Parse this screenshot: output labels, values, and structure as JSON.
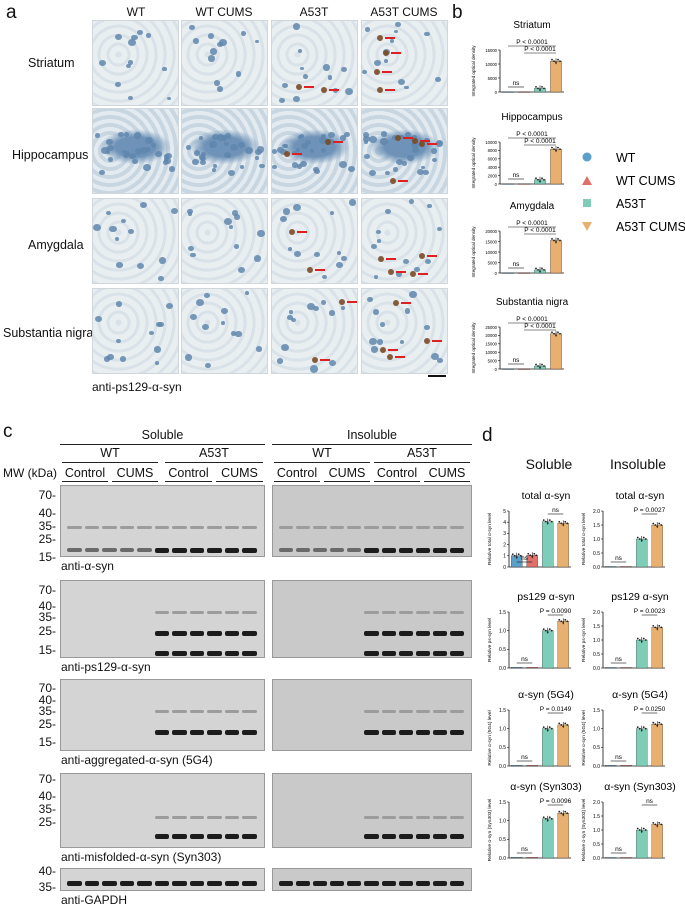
{
  "panels": {
    "a": "a",
    "b": "b",
    "c": "c",
    "d": "d"
  },
  "panel_a": {
    "columns": [
      "WT",
      "WT CUMS",
      "A53T",
      "A53T CUMS"
    ],
    "rows": [
      "Striatum",
      "Hippocampus",
      "Amygdala",
      "Substantia nigra"
    ],
    "caption": "anti-ps129-α-syn"
  },
  "panel_b": {
    "ylabel": "Integrated optical density",
    "legend": [
      {
        "label": "WT",
        "color": "#5aa0c8",
        "marker": "circle"
      },
      {
        "label": "WT CUMS",
        "color": "#e07068",
        "marker": "triangle"
      },
      {
        "label": "A53T",
        "color": "#7ecdb8",
        "marker": "square"
      },
      {
        "label": "A53T CUMS",
        "color": "#e8b070",
        "marker": "inverted-triangle"
      }
    ]
  },
  "panel_c": {
    "groups": {
      "soluble": "Soluble",
      "insoluble": "Insoluble",
      "wt": "WT",
      "a53t": "A53T",
      "control": "Control",
      "cums": "CUMS"
    },
    "mw_label": "MW (kDa)",
    "blots": [
      {
        "label": "anti-α-syn",
        "markers": [
          "70-",
          "40-",
          "35-",
          "25-",
          "15-"
        ]
      },
      {
        "label": "anti-ps129-α-syn",
        "markers": [
          "70-",
          "40-",
          "35-",
          "25-",
          "15-"
        ]
      },
      {
        "label": "anti-aggregated-α-syn (5G4)",
        "markers": [
          "70-",
          "40-",
          "35-",
          "25-",
          "15-"
        ]
      },
      {
        "label": "anti-misfolded-α-syn (Syn303)",
        "markers": [
          "70-",
          "40-",
          "35-",
          "25-"
        ]
      },
      {
        "label": "anti-GAPDH",
        "markers": [
          "40-",
          "35-"
        ]
      }
    ]
  },
  "panel_d": {
    "col_titles": [
      "Soluble",
      "Insoluble"
    ],
    "ns": "ns"
  },
  "chart_data": [
    {
      "type": "bar",
      "title": "Striatum",
      "categories": [
        "WT",
        "WT CUMS",
        "A53T",
        "A53T CUMS"
      ],
      "values": [
        30,
        30,
        1300,
        11000
      ],
      "ylim": [
        0,
        15000
      ],
      "yticks": [
        "0",
        "5000",
        "10000",
        "15000"
      ],
      "ylabel": "Integrated optical density",
      "annotations": [
        "ns",
        "P < 0.0001",
        "P < 0.0001"
      ]
    },
    {
      "type": "bar",
      "title": "Hippocampus",
      "categories": [
        "WT",
        "WT CUMS",
        "A53T",
        "A53T CUMS"
      ],
      "values": [
        30,
        30,
        1000,
        8300
      ],
      "ylim": [
        0,
        10000
      ],
      "yticks": [
        "0",
        "2000",
        "4000",
        "6000",
        "8000",
        "10000"
      ],
      "ylabel": "Integrated optical density",
      "annotations": [
        "ns",
        "P < 0.0001",
        "P < 0.0001"
      ]
    },
    {
      "type": "bar",
      "title": "Amygdala",
      "categories": [
        "WT",
        "WT CUMS",
        "A53T",
        "A53T CUMS"
      ],
      "values": [
        30,
        30,
        1500,
        15500
      ],
      "ylim": [
        0,
        20000
      ],
      "yticks": [
        "0",
        "5000",
        "10000",
        "15000",
        "20000"
      ],
      "ylabel": "Integrated optical density",
      "annotations": [
        "ns",
        "P < 0.0001",
        "P < 0.0001"
      ]
    },
    {
      "type": "bar",
      "title": "Substantia nigra",
      "categories": [
        "WT",
        "WT CUMS",
        "A53T",
        "A53T CUMS"
      ],
      "values": [
        30,
        30,
        1800,
        21000
      ],
      "ylim": [
        0,
        25000
      ],
      "yticks": [
        "0",
        "5000",
        "10000",
        "15000",
        "20000",
        "25000"
      ],
      "ylabel": "Integrated optical density",
      "annotations": [
        "ns",
        "P < 0.0001",
        "P < 0.0001"
      ]
    },
    {
      "type": "bar",
      "title": "total α-syn",
      "group": "Soluble",
      "categories": [
        "WT",
        "WT CUMS",
        "A53T",
        "A53T CUMS"
      ],
      "values": [
        1.0,
        1.05,
        4.05,
        3.9
      ],
      "ylim": [
        0,
        5
      ],
      "yticks": [
        "0",
        "1",
        "2",
        "3",
        "4",
        "5"
      ],
      "ylabel": "Relative total α-syn level",
      "annotations": [
        "ns",
        "ns"
      ]
    },
    {
      "type": "bar",
      "title": "total α-syn",
      "group": "Insoluble",
      "categories": [
        "WT",
        "WT CUMS",
        "A53T",
        "A53T CUMS"
      ],
      "values": [
        0.02,
        0.02,
        1.0,
        1.5
      ],
      "ylim": [
        0,
        2.0
      ],
      "yticks": [
        "0.0",
        "0.5",
        "1.0",
        "1.5",
        "2.0"
      ],
      "ylabel": "Relative total α-syn level",
      "annotations": [
        "ns",
        "P = 0.0027"
      ]
    },
    {
      "type": "bar",
      "title": "ps129 α-syn",
      "group": "Soluble",
      "categories": [
        "WT",
        "WT CUMS",
        "A53T",
        "A53T CUMS"
      ],
      "values": [
        0.02,
        0.02,
        1.0,
        1.25
      ],
      "ylim": [
        0,
        1.5
      ],
      "yticks": [
        "0.0",
        "0.5",
        "1.0",
        "1.5"
      ],
      "ylabel": "Relative ps-syn level",
      "annotations": [
        "ns",
        "P = 0.0090"
      ]
    },
    {
      "type": "bar",
      "title": "ps129 α-syn",
      "group": "Insoluble",
      "categories": [
        "WT",
        "WT CUMS",
        "A53T",
        "A53T CUMS"
      ],
      "values": [
        0.02,
        0.02,
        1.0,
        1.45
      ],
      "ylim": [
        0,
        2.0
      ],
      "yticks": [
        "0.0",
        "0.5",
        "1.0",
        "1.5",
        "2.0"
      ],
      "ylabel": "Relative ps-syn level",
      "annotations": [
        "ns",
        "P = 0.0023"
      ]
    },
    {
      "type": "bar",
      "title": "α-syn (5G4)",
      "group": "Soluble",
      "categories": [
        "WT",
        "WT CUMS",
        "A53T",
        "A53T CUMS"
      ],
      "values": [
        0.02,
        0.02,
        1.0,
        1.1
      ],
      "ylim": [
        0,
        1.5
      ],
      "yticks": [
        "0.0",
        "0.5",
        "1.0",
        "1.5"
      ],
      "ylabel": "Relative α-syn (5G4) level",
      "annotations": [
        "ns",
        "P = 0.0149"
      ]
    },
    {
      "type": "bar",
      "title": "α-syn (5G4)",
      "group": "Insoluble",
      "categories": [
        "WT",
        "WT CUMS",
        "A53T",
        "A53T CUMS"
      ],
      "values": [
        0.02,
        0.02,
        1.0,
        1.12
      ],
      "ylim": [
        0,
        1.5
      ],
      "yticks": [
        "0.0",
        "0.5",
        "1.0",
        "1.5"
      ],
      "ylabel": "Relative α-syn (5G4) level",
      "annotations": [
        "ns",
        "P = 0.0250"
      ]
    },
    {
      "type": "bar",
      "title": "α-syn (Syn303)",
      "group": "Soluble",
      "categories": [
        "WT",
        "WT CUMS",
        "A53T",
        "A53T CUMS"
      ],
      "values": [
        0.02,
        0.02,
        1.05,
        1.2
      ],
      "ylim": [
        0,
        1.5
      ],
      "yticks": [
        "0.0",
        "0.5",
        "1.0",
        "1.5"
      ],
      "ylabel": "Relative α-syn (Syn303) level",
      "annotations": [
        "ns",
        "P = 0.0096"
      ]
    },
    {
      "type": "bar",
      "title": "α-syn (Syn303)",
      "group": "Insoluble",
      "categories": [
        "WT",
        "WT CUMS",
        "A53T",
        "A53T CUMS"
      ],
      "values": [
        0.02,
        0.02,
        1.0,
        1.2
      ],
      "ylim": [
        0,
        2.0
      ],
      "yticks": [
        "0.0",
        "0.5",
        "1.0",
        "1.5",
        "2.0"
      ],
      "ylabel": "Relative α-syn (Syn303) level",
      "annotations": [
        "ns",
        "ns"
      ]
    }
  ]
}
